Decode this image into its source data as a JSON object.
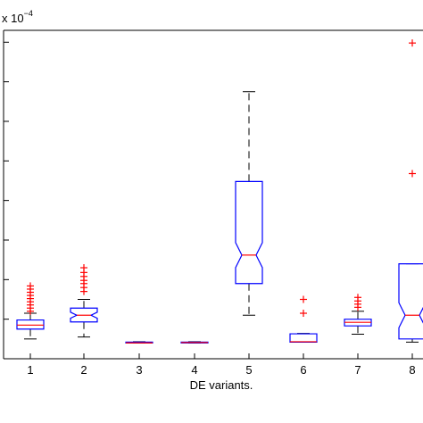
{
  "chart_data": {
    "type": "boxplot",
    "title": "",
    "xlabel": "DE variants.",
    "ylabel": "",
    "y_multiplier_label": {
      "base": "x 10",
      "exponent": "−4"
    },
    "x_tick_labels": [
      "1",
      "2",
      "3",
      "4",
      "5",
      "6",
      "7",
      "8"
    ],
    "ylim": [
      0,
      8.3
    ],
    "grid": false,
    "notched": true,
    "colors": {
      "box": "#0000ff",
      "median": "#ff0000",
      "outlier": "#ff0000",
      "whisker": "#000000"
    },
    "boxes": [
      {
        "category": "1",
        "q1": 0.75,
        "median": 0.85,
        "q3": 0.98,
        "whisker_low": 0.5,
        "whisker_high": 1.15,
        "outliers": [
          1.2,
          1.28,
          1.36,
          1.44,
          1.52,
          1.6,
          1.68,
          1.76,
          1.84
        ]
      },
      {
        "category": "2",
        "q1": 0.93,
        "median": 1.1,
        "q3": 1.28,
        "whisker_low": 0.55,
        "whisker_high": 1.5,
        "outliers": [
          1.7,
          1.8,
          1.9,
          1.98,
          2.08,
          2.18,
          2.3
        ]
      },
      {
        "category": "3",
        "q1": 0.4,
        "median": 0.4,
        "q3": 0.42,
        "whisker_low": 0.4,
        "whisker_high": 0.43,
        "outliers": []
      },
      {
        "category": "4",
        "q1": 0.4,
        "median": 0.41,
        "q3": 0.42,
        "whisker_low": 0.4,
        "whisker_high": 0.43,
        "outliers": []
      },
      {
        "category": "5",
        "q1": 1.9,
        "median": 2.62,
        "q3": 4.48,
        "whisker_low": 1.1,
        "whisker_high": 6.75,
        "outliers": []
      },
      {
        "category": "6",
        "q1": 0.42,
        "median": 0.43,
        "q3": 0.63,
        "whisker_low": 0.42,
        "whisker_high": 0.64,
        "outliers": [
          1.15,
          1.5
        ]
      },
      {
        "category": "7",
        "q1": 0.83,
        "median": 0.92,
        "q3": 1.0,
        "whisker_low": 0.62,
        "whisker_high": 1.2,
        "outliers": [
          1.3,
          1.38,
          1.46,
          1.55
        ]
      },
      {
        "category": "8",
        "q1": 0.5,
        "median": 1.1,
        "q3": 2.4,
        "whisker_low": 0.42,
        "whisker_high": 2.4,
        "outliers": [
          4.68,
          7.98
        ]
      }
    ]
  }
}
